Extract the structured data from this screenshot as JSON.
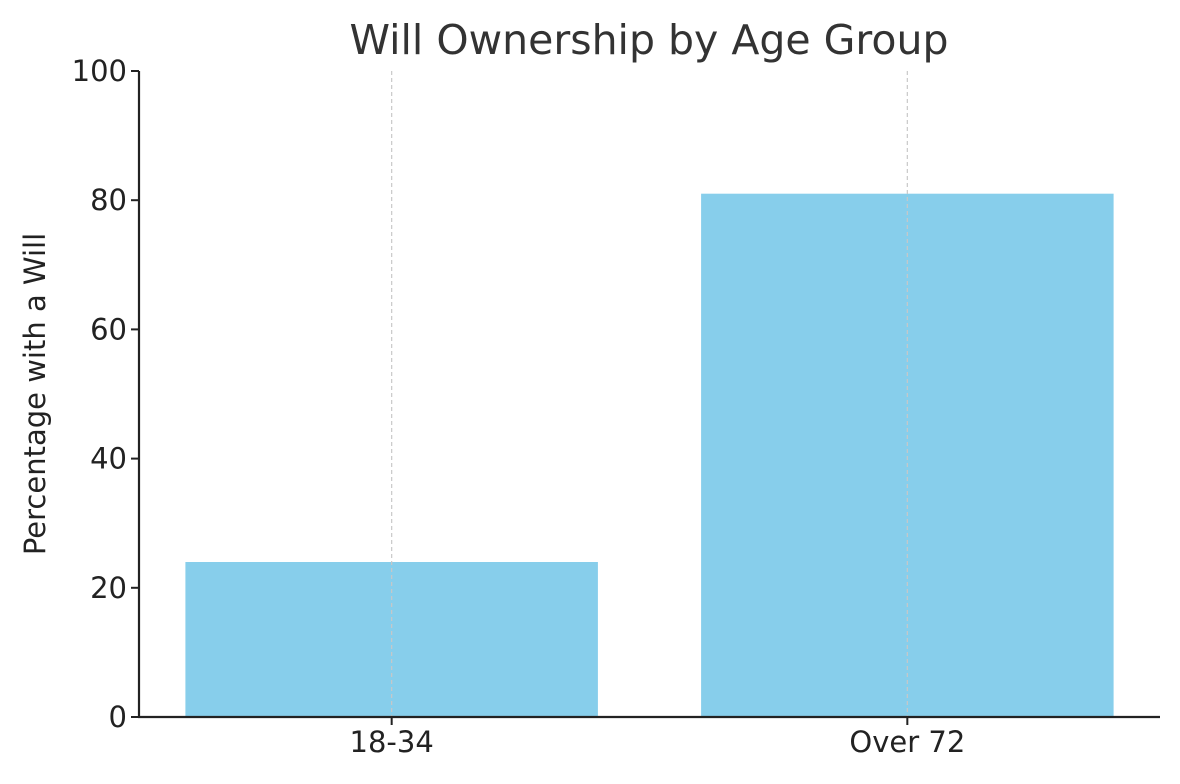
{
  "chart_data": {
    "type": "bar",
    "title": "Will Ownership by Age Group",
    "xlabel": "",
    "ylabel": "Percentage with a Will",
    "categories": [
      "18-34",
      "Over 72"
    ],
    "values": [
      24,
      81
    ],
    "ylim": [
      0,
      100
    ],
    "yticks": [
      0,
      20,
      40,
      60,
      80,
      100
    ],
    "grid": "vertical dashed at category centers",
    "bar_color": "#87CEEB",
    "legend": "none"
  }
}
